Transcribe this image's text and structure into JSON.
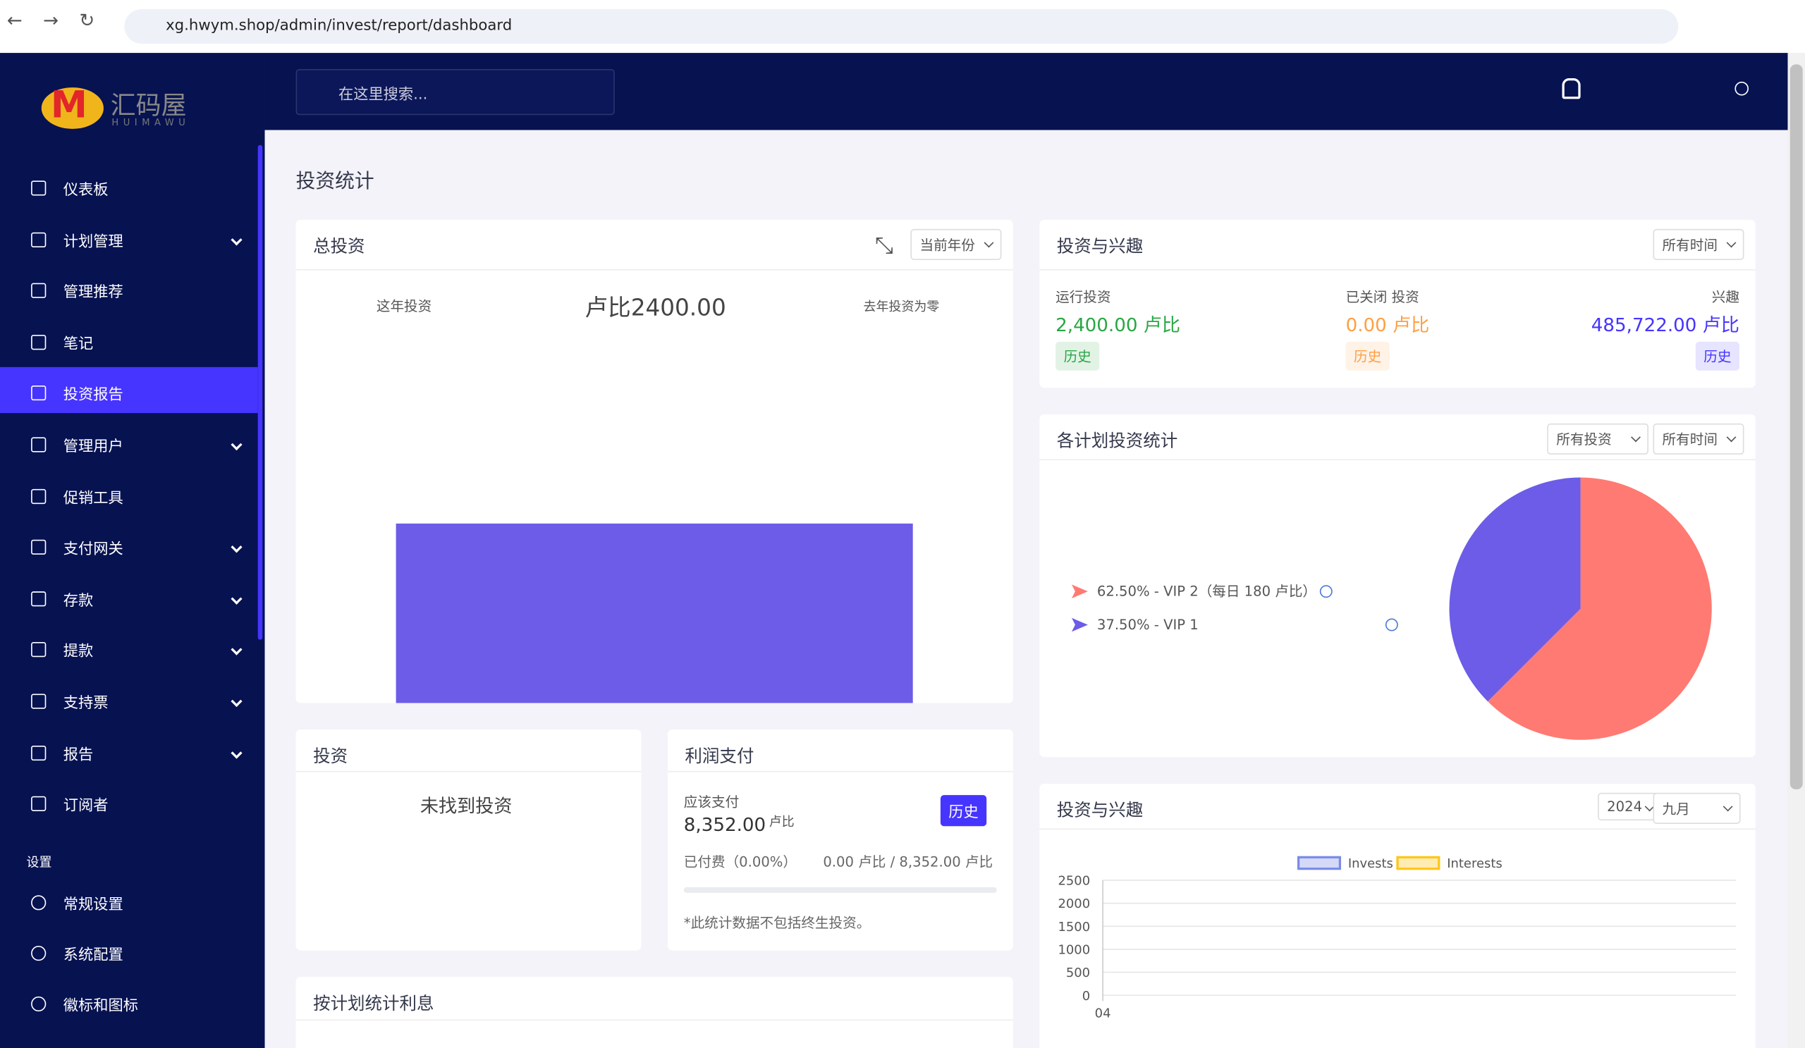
{
  "browser": {
    "url": "xg.hwym.shop/admin/invest/report/dashboard"
  },
  "sidebar": {
    "logo": "汇码屋",
    "logo_sub": "HUIMAWU",
    "items": [
      {
        "label": "仪表板",
        "dropdown": false
      },
      {
        "label": "计划管理",
        "dropdown": true
      },
      {
        "label": "管理推荐",
        "dropdown": false
      },
      {
        "label": "笔记",
        "dropdown": false
      },
      {
        "label": "投资报告",
        "dropdown": false,
        "active": true
      },
      {
        "label": "管理用户",
        "dropdown": true
      },
      {
        "label": "促销工具",
        "dropdown": false
      },
      {
        "label": "支付网关",
        "dropdown": true
      },
      {
        "label": "存款",
        "dropdown": true
      },
      {
        "label": "提款",
        "dropdown": true
      },
      {
        "label": "支持票",
        "dropdown": true
      },
      {
        "label": "报告",
        "dropdown": true
      },
      {
        "label": "订阅者",
        "dropdown": false
      }
    ],
    "section": "设置",
    "settings": [
      "常规设置",
      "系统配置",
      "徽标和图标"
    ]
  },
  "topbar": {
    "search_placeholder": "在这里搜索..."
  },
  "page_title": "投资统计",
  "total_invest": {
    "title": "总投资",
    "select": "当前年份",
    "this_year_label": "这年投资",
    "amount": "卢比2400.00",
    "last_year": "去年投资为零",
    "chart_data": {
      "type": "bar",
      "values": [
        2400
      ],
      "color": "#6c5ce7",
      "ylim": [
        0,
        5000
      ]
    }
  },
  "invest_interest": {
    "title": "投资与兴趣",
    "select": "所有时间",
    "stats": [
      {
        "label": "运行投资",
        "value": "2,400.00 卢比",
        "button": "历史",
        "color": "#28a745"
      },
      {
        "label": "已关闭 投资",
        "value": "0.00 卢比",
        "button": "历史",
        "color": "#ff9f43"
      },
      {
        "label": "兴趣",
        "value": "485,722.00 卢比",
        "button": "历史",
        "color": "#4634ff"
      }
    ]
  },
  "plan_stats": {
    "title": "各计划投资统计",
    "selects": [
      "所有投资",
      "所有时间"
    ],
    "chart_data": {
      "type": "pie",
      "categories": [
        "62.50% - VIP 2（每日 180 卢比）",
        "37.50% - VIP 1"
      ],
      "values": [
        62.5,
        37.5
      ],
      "colors": [
        "#ff7a72",
        "#6c5ce7"
      ]
    }
  },
  "investments": {
    "title": "投资",
    "empty": "未找到投资"
  },
  "profit": {
    "title": "利润支付",
    "due_label": "应该支付",
    "due_value": "8,352.00",
    "due_unit": "卢比",
    "button": "历史",
    "paid_label": "已付费（0.00%）",
    "paid_value": "0.00 卢比 / 8,352.00 卢比",
    "note": "*此统计数据不包括终生投资。"
  },
  "plan_interest": {
    "title": "按计划统计利息"
  },
  "line_card": {
    "title": "投资与兴趣",
    "selects": [
      "2024",
      "九月"
    ],
    "chart_data": {
      "type": "line",
      "categories": [
        "04"
      ],
      "series": [
        {
          "name": "Invests",
          "color": "#7b8ce8",
          "values": [
            0
          ]
        },
        {
          "name": "Interests",
          "color": "#ffc61a",
          "values": [
            0
          ]
        }
      ],
      "ylim": [
        0,
        2500
      ],
      "yticks": [
        0,
        500,
        1000,
        1500,
        2000,
        2500
      ],
      "grid": true
    }
  }
}
